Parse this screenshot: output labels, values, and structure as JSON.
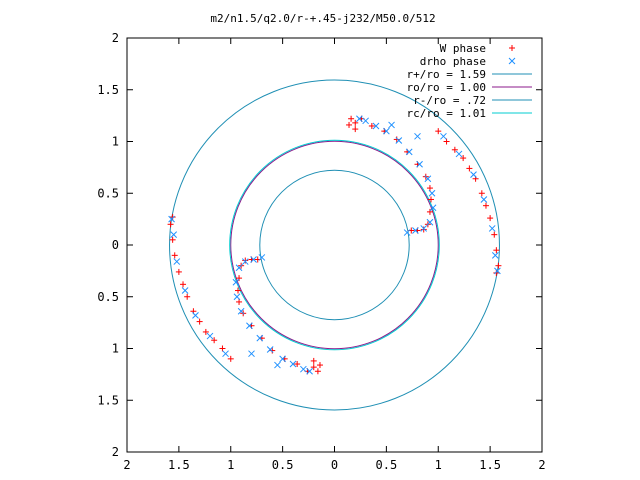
{
  "chart_data": {
    "type": "scatter",
    "title": "m2/n1.5/q2.0/r-+.45-j232/M50.0/512",
    "xlim": [
      -2,
      2
    ],
    "ylim": [
      -2,
      2
    ],
    "x_ticks": [
      {
        "value": -2,
        "label": "2"
      },
      {
        "value": -1.5,
        "label": "1.5"
      },
      {
        "value": -1,
        "label": "1"
      },
      {
        "value": -0.5,
        "label": "0.5"
      },
      {
        "value": 0,
        "label": "0"
      },
      {
        "value": 0.5,
        "label": "0.5"
      },
      {
        "value": 1,
        "label": "1"
      },
      {
        "value": 1.5,
        "label": "1.5"
      },
      {
        "value": 2,
        "label": "2"
      }
    ],
    "y_ticks": [
      {
        "value": 2,
        "label": "2"
      },
      {
        "value": 1.5,
        "label": "1.5"
      },
      {
        "value": 1,
        "label": "1"
      },
      {
        "value": 0.5,
        "label": "0.5"
      },
      {
        "value": 0,
        "label": "0"
      },
      {
        "value": -0.5,
        "label": "0.5"
      },
      {
        "value": -1,
        "label": "1"
      },
      {
        "value": -1.5,
        "label": "1.5"
      },
      {
        "value": -2,
        "label": "2"
      }
    ],
    "legend_position": "top-right",
    "grid": false,
    "series": [
      {
        "name": "W phase",
        "marker": "plus",
        "color": "#ff0000",
        "points": [
          [
            0.2,
            1.18
          ],
          [
            0.16,
            1.22
          ],
          [
            0.14,
            1.16
          ],
          [
            0.2,
            1.12
          ],
          [
            0.26,
            1.22
          ],
          [
            0.36,
            1.15
          ],
          [
            0.48,
            1.1
          ],
          [
            0.6,
            1.02
          ],
          [
            0.7,
            0.9
          ],
          [
            0.8,
            0.78
          ],
          [
            0.88,
            0.66
          ],
          [
            0.92,
            0.55
          ],
          [
            0.93,
            0.44
          ],
          [
            0.92,
            0.32
          ],
          [
            0.9,
            0.2
          ],
          [
            0.86,
            0.15
          ],
          [
            0.8,
            0.14
          ],
          [
            0.74,
            0.14
          ],
          [
            1.0,
            1.1
          ],
          [
            1.08,
            1.0
          ],
          [
            1.16,
            0.92
          ],
          [
            1.24,
            0.84
          ],
          [
            1.3,
            0.74
          ],
          [
            1.36,
            0.64
          ],
          [
            1.42,
            0.5
          ],
          [
            1.46,
            0.38
          ],
          [
            1.5,
            0.26
          ],
          [
            1.54,
            0.1
          ],
          [
            1.56,
            -0.05
          ],
          [
            1.58,
            -0.2
          ],
          [
            1.56,
            -0.27
          ],
          [
            -0.2,
            -1.18
          ],
          [
            -0.16,
            -1.22
          ],
          [
            -0.14,
            -1.16
          ],
          [
            -0.2,
            -1.12
          ],
          [
            -0.26,
            -1.22
          ],
          [
            -0.36,
            -1.15
          ],
          [
            -0.48,
            -1.1
          ],
          [
            -0.6,
            -1.02
          ],
          [
            -0.7,
            -0.9
          ],
          [
            -0.8,
            -0.78
          ],
          [
            -0.88,
            -0.66
          ],
          [
            -0.92,
            -0.55
          ],
          [
            -0.93,
            -0.44
          ],
          [
            -0.92,
            -0.32
          ],
          [
            -0.9,
            -0.2
          ],
          [
            -0.86,
            -0.15
          ],
          [
            -0.8,
            -0.14
          ],
          [
            -0.74,
            -0.14
          ],
          [
            -1.0,
            -1.1
          ],
          [
            -1.08,
            -1.0
          ],
          [
            -1.16,
            -0.92
          ],
          [
            -1.24,
            -0.84
          ],
          [
            -1.3,
            -0.74
          ],
          [
            -1.36,
            -0.64
          ],
          [
            -1.42,
            -0.5
          ],
          [
            -1.46,
            -0.38
          ],
          [
            -1.5,
            -0.26
          ],
          [
            -1.54,
            -0.1
          ],
          [
            -1.56,
            0.05
          ],
          [
            -1.58,
            0.2
          ],
          [
            -1.56,
            0.27
          ]
        ]
      },
      {
        "name": "drho phase",
        "marker": "cross",
        "color": "#1e90ff",
        "points": [
          [
            0.24,
            1.22
          ],
          [
            0.3,
            1.2
          ],
          [
            0.4,
            1.15
          ],
          [
            0.5,
            1.1
          ],
          [
            0.62,
            1.01
          ],
          [
            0.72,
            0.9
          ],
          [
            0.82,
            0.78
          ],
          [
            0.9,
            0.64
          ],
          [
            0.94,
            0.5
          ],
          [
            0.95,
            0.36
          ],
          [
            0.92,
            0.22
          ],
          [
            0.86,
            0.16
          ],
          [
            0.78,
            0.14
          ],
          [
            0.7,
            0.12
          ],
          [
            0.55,
            1.16
          ],
          [
            0.8,
            1.05
          ],
          [
            1.05,
            1.05
          ],
          [
            1.2,
            0.88
          ],
          [
            1.34,
            0.68
          ],
          [
            1.44,
            0.44
          ],
          [
            1.52,
            0.16
          ],
          [
            1.55,
            -0.1
          ],
          [
            1.57,
            -0.25
          ],
          [
            -0.24,
            -1.22
          ],
          [
            -0.3,
            -1.2
          ],
          [
            -0.4,
            -1.15
          ],
          [
            -0.5,
            -1.1
          ],
          [
            -0.62,
            -1.01
          ],
          [
            -0.72,
            -0.9
          ],
          [
            -0.82,
            -0.78
          ],
          [
            -0.9,
            -0.64
          ],
          [
            -0.94,
            -0.5
          ],
          [
            -0.95,
            -0.36
          ],
          [
            -0.92,
            -0.22
          ],
          [
            -0.86,
            -0.16
          ],
          [
            -0.78,
            -0.14
          ],
          [
            -0.7,
            -0.12
          ],
          [
            -0.55,
            -1.16
          ],
          [
            -0.8,
            -1.05
          ],
          [
            -1.05,
            -1.05
          ],
          [
            -1.2,
            -0.88
          ],
          [
            -1.34,
            -0.68
          ],
          [
            -1.44,
            -0.44
          ],
          [
            -1.52,
            -0.16
          ],
          [
            -1.55,
            0.1
          ],
          [
            -1.57,
            0.25
          ]
        ]
      },
      {
        "name": "r+/ro = 1.59",
        "type": "circle",
        "radius": 1.59,
        "color": "#1f8fb4"
      },
      {
        "name": "ro/ro = 1.00",
        "type": "circle",
        "radius": 1.0,
        "color": "#8b1a8b"
      },
      {
        "name": "r-/ro = .72",
        "type": "circle",
        "radius": 0.72,
        "color": "#1f8fb4"
      },
      {
        "name": "rc/ro = 1.01",
        "type": "circle",
        "radius": 1.01,
        "color": "#00ced1"
      }
    ]
  }
}
